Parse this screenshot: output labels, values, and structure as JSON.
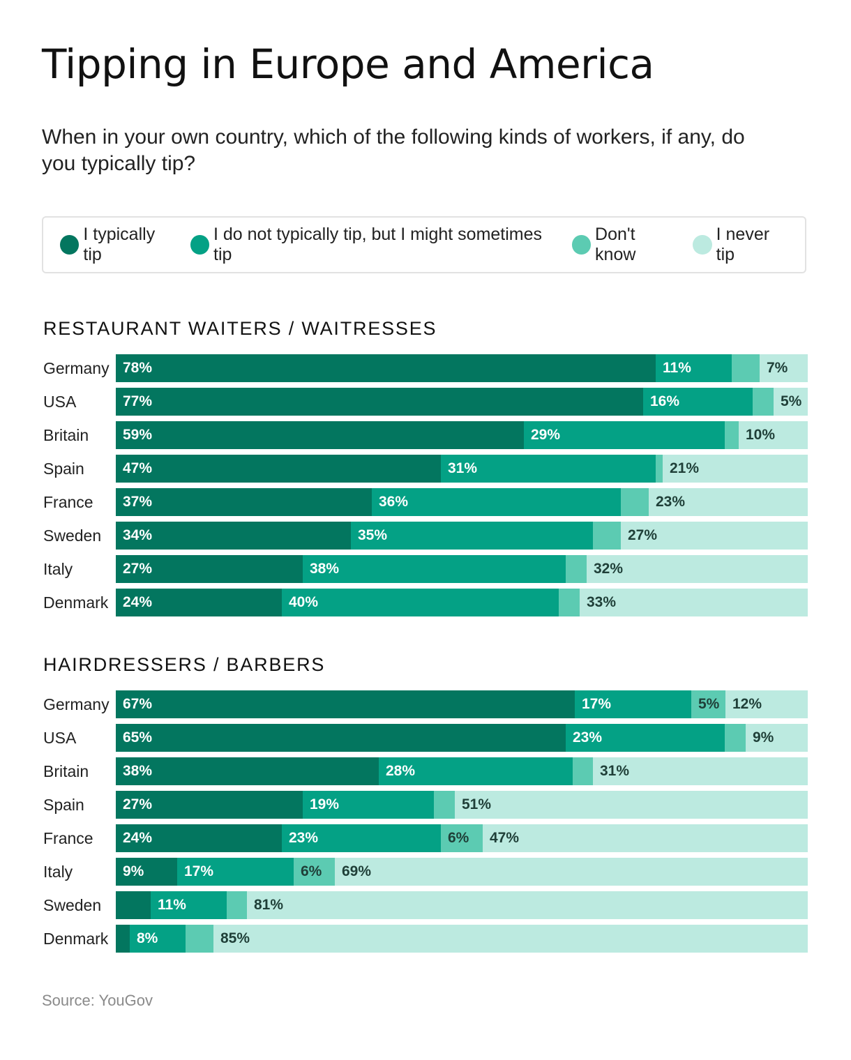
{
  "title": "Tipping in Europe and America",
  "subtitle": "When in your own country, which of the following kinds of workers, if any, do you typically tip?",
  "source": "Source: YouGov",
  "colors": {
    "typically_tip": "#03765f",
    "sometimes_tip": "#04a185",
    "dont_know": "#5ccbb2",
    "never_tip": "#bceae0"
  },
  "legend": [
    {
      "label": "I typically tip",
      "color": "#03765f"
    },
    {
      "label": "I do not typically tip, but I might sometimes tip",
      "color": "#04a185"
    },
    {
      "label": "Don't know",
      "color": "#5ccbb2"
    },
    {
      "label": "I never tip",
      "color": "#bceae0"
    }
  ],
  "chart_data": [
    {
      "type": "bar",
      "stacked": true,
      "orientation": "horizontal",
      "title": "RESTAURANT WAITERS / WAITRESSES",
      "series_names": [
        "I typically tip",
        "I do not typically tip, but I might sometimes tip",
        "Don't know",
        "I never tip"
      ],
      "rows": [
        {
          "country": "Germany",
          "values": [
            78,
            11,
            4,
            7
          ],
          "labels": [
            "78%",
            "11%",
            "",
            "7%"
          ]
        },
        {
          "country": "USA",
          "values": [
            77,
            16,
            3,
            5
          ],
          "labels": [
            "77%",
            "16%",
            "",
            "5%"
          ]
        },
        {
          "country": "Britain",
          "values": [
            59,
            29,
            2,
            10
          ],
          "labels": [
            "59%",
            "29%",
            "",
            "10%"
          ]
        },
        {
          "country": "Spain",
          "values": [
            47,
            31,
            1,
            21
          ],
          "labels": [
            "47%",
            "31%",
            "",
            "21%"
          ]
        },
        {
          "country": "France",
          "values": [
            37,
            36,
            4,
            23
          ],
          "labels": [
            "37%",
            "36%",
            "",
            "23%"
          ]
        },
        {
          "country": "Sweden",
          "values": [
            34,
            35,
            4,
            27
          ],
          "labels": [
            "34%",
            "35%",
            "",
            "27%"
          ]
        },
        {
          "country": "Italy",
          "values": [
            27,
            38,
            3,
            32
          ],
          "labels": [
            "27%",
            "38%",
            "",
            "32%"
          ]
        },
        {
          "country": "Denmark",
          "values": [
            24,
            40,
            3,
            33
          ],
          "labels": [
            "24%",
            "40%",
            "",
            "33%"
          ]
        }
      ]
    },
    {
      "type": "bar",
      "stacked": true,
      "orientation": "horizontal",
      "title": "HAIRDRESSERS / BARBERS",
      "series_names": [
        "I typically tip",
        "I do not typically tip, but I might sometimes tip",
        "Don't know",
        "I never tip"
      ],
      "rows": [
        {
          "country": "Germany",
          "values": [
            67,
            17,
            5,
            12
          ],
          "labels": [
            "67%",
            "17%",
            "5%",
            "12%"
          ]
        },
        {
          "country": "USA",
          "values": [
            65,
            23,
            3,
            9
          ],
          "labels": [
            "65%",
            "23%",
            "",
            "9%"
          ]
        },
        {
          "country": "Britain",
          "values": [
            38,
            28,
            3,
            31
          ],
          "labels": [
            "38%",
            "28%",
            "",
            "31%"
          ]
        },
        {
          "country": "Spain",
          "values": [
            27,
            19,
            3,
            51
          ],
          "labels": [
            "27%",
            "19%",
            "",
            "51%"
          ]
        },
        {
          "country": "France",
          "values": [
            24,
            23,
            6,
            47
          ],
          "labels": [
            "24%",
            "23%",
            "6%",
            "47%"
          ]
        },
        {
          "country": "Italy",
          "values": [
            9,
            17,
            6,
            69
          ],
          "labels": [
            "9%",
            "17%",
            "6%",
            "69%"
          ]
        },
        {
          "country": "Sweden",
          "values": [
            5,
            11,
            3,
            81
          ],
          "labels": [
            "",
            "11%",
            "",
            "81%"
          ]
        },
        {
          "country": "Denmark",
          "values": [
            2,
            8,
            4,
            85
          ],
          "labels": [
            "",
            "8%",
            "",
            "85%"
          ]
        }
      ]
    }
  ]
}
